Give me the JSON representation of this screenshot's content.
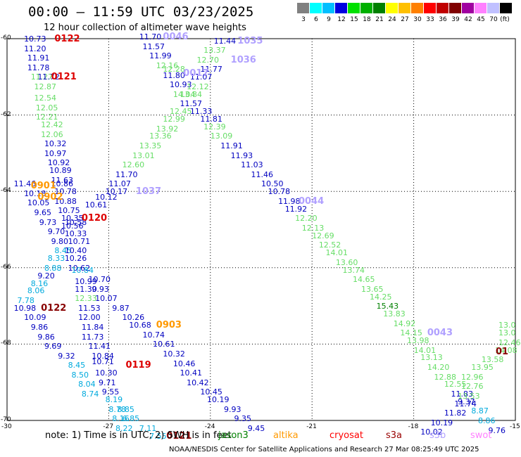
{
  "title": "00:00 – 11:59 UTC 03/23/2025",
  "subtitle": "12 hour collection of altimeter wave heights",
  "note": "note: 1) Time is in UTC; 2) SWH is in feet",
  "footer": "NOAA/NESDIS Center for Satellite Applications and Research   27 Mar 08:25:49 UTC 2025",
  "color_scale": {
    "unit": "(ft)",
    "bins": [
      {
        "label": "3",
        "color": "#808080"
      },
      {
        "label": "6",
        "color": "#00ffff"
      },
      {
        "label": "9",
        "color": "#00bfff"
      },
      {
        "label": "12",
        "color": "#0000e0"
      },
      {
        "label": "15",
        "color": "#00e000"
      },
      {
        "label": "18",
        "color": "#00b000"
      },
      {
        "label": "21",
        "color": "#008000"
      },
      {
        "label": "24",
        "color": "#ffff00"
      },
      {
        "label": "27",
        "color": "#ffc000"
      },
      {
        "label": "30",
        "color": "#ff8000"
      },
      {
        "label": "33",
        "color": "#ff0000"
      },
      {
        "label": "36",
        "color": "#c00000"
      },
      {
        "label": "39",
        "color": "#800000"
      },
      {
        "label": "42",
        "color": "#a000a0"
      },
      {
        "label": "45",
        "color": "#ff80ff"
      },
      {
        "label": "70",
        "color": "#c0c0ff"
      },
      {
        "label": "",
        "color": "#000000"
      }
    ]
  },
  "satellites": [
    {
      "name": "jason3",
      "color": "#008000"
    },
    {
      "name": "altika",
      "color": "#ff9900"
    },
    {
      "name": "cryosat",
      "color": "#ff0000"
    },
    {
      "name": "s3a",
      "color": "#990000"
    },
    {
      "name": "s3b",
      "color": "#b0a0ff"
    },
    {
      "name": "swot",
      "color": "#ff80ff"
    }
  ],
  "axes": {
    "lon_ticks": [
      "-30",
      "-27",
      "-24",
      "-21",
      "-18",
      "-15"
    ],
    "lat_ticks": [
      "-60",
      "-62",
      "-64",
      "-66",
      "-68",
      "-70"
    ]
  },
  "map_data": {
    "colors": {
      "B": "#0000c0",
      "L": "#66dd66",
      "C": "#00aadd",
      "G": "#008000",
      "P": "#b0a0ff",
      "R": "#dd0000",
      "D": "#880000",
      "O": "#ff9900"
    },
    "labels": [
      [
        "10.73",
        "B",
        -29.5,
        -60.0
      ],
      [
        "11.20",
        "B",
        -29.5,
        -60.25
      ],
      [
        "11.91",
        "B",
        -29.4,
        -60.5
      ],
      [
        "11.78",
        "B",
        -29.4,
        -60.75
      ],
      [
        "11.27",
        "L",
        -29.3,
        -61.0
      ],
      [
        "11.72",
        "B",
        -29.1,
        -61.0
      ],
      [
        "12.87",
        "L",
        -29.2,
        -61.25
      ],
      [
        "12.54",
        "L",
        -29.2,
        -61.55
      ],
      [
        "12.05",
        "L",
        -29.15,
        -61.8
      ],
      [
        "12.21",
        "L",
        -29.15,
        -62.05
      ],
      [
        "12.42",
        "L",
        -29.0,
        -62.25
      ],
      [
        "12.06",
        "L",
        -29.0,
        -62.5
      ],
      [
        "10.32",
        "B",
        -28.9,
        -62.75
      ],
      [
        "10.97",
        "B",
        -28.9,
        -63.0
      ],
      [
        "10.92",
        "B",
        -28.8,
        -63.25
      ],
      [
        "10.89",
        "B",
        -28.75,
        -63.45
      ],
      [
        "11.63",
        "B",
        -28.7,
        -63.7
      ],
      [
        "11.46",
        "B",
        -29.8,
        -63.8
      ],
      [
        "10.86",
        "B",
        -28.7,
        -63.8
      ],
      [
        "10.78",
        "B",
        -28.6,
        -64.0
      ],
      [
        "10.18",
        "B",
        -29.5,
        -64.05
      ],
      [
        "10.05",
        "B",
        -29.4,
        -64.3
      ],
      [
        "10.88",
        "B",
        -28.6,
        -64.25
      ],
      [
        "10.75",
        "B",
        -28.5,
        -64.5
      ],
      [
        "9.65",
        "B",
        -29.2,
        -64.55
      ],
      [
        "10.35",
        "B",
        -28.4,
        -64.7
      ],
      [
        "10.58",
        "B",
        -28.3,
        -64.8
      ],
      [
        "9.73",
        "B",
        -29.05,
        -64.8
      ],
      [
        "10.56",
        "B",
        -28.4,
        -64.9
      ],
      [
        "10.33",
        "B",
        -28.3,
        -65.1
      ],
      [
        "9.70",
        "B",
        -28.8,
        -65.05
      ],
      [
        "9.80",
        "B",
        -28.7,
        -65.3
      ],
      [
        "10.71",
        "B",
        -28.2,
        -65.3
      ],
      [
        "8.45",
        "C",
        -28.6,
        -65.55
      ],
      [
        "10.40",
        "B",
        -28.3,
        -65.55
      ],
      [
        "8.33",
        "C",
        -28.8,
        -65.75
      ],
      [
        "10.26",
        "B",
        -28.3,
        -65.75
      ],
      [
        "8.88",
        "C",
        -28.9,
        -66.0
      ],
      [
        "10.62",
        "B",
        -28.2,
        -66.0
      ],
      [
        "10.84",
        "C",
        -28.1,
        -66.05
      ],
      [
        "9.20",
        "B",
        -29.1,
        -66.2
      ],
      [
        "10.70",
        "B",
        -27.6,
        -66.3
      ],
      [
        "10.99",
        "B",
        -28.0,
        -66.35
      ],
      [
        "8.16",
        "C",
        -29.3,
        -66.4
      ],
      [
        "8.06",
        "C",
        -29.4,
        -66.6
      ],
      [
        "11.30",
        "B",
        -28.0,
        -66.55
      ],
      [
        "9.93",
        "B",
        -27.5,
        -66.55
      ],
      [
        "12.33",
        "L",
        -28.0,
        -66.8
      ],
      [
        "10.07",
        "B",
        -27.4,
        -66.8
      ],
      [
        "7.78",
        "C",
        -29.7,
        -66.85
      ],
      [
        "9.87",
        "B",
        -26.9,
        -67.05
      ],
      [
        "10.98",
        "B",
        -29.8,
        -67.05
      ],
      [
        "11.53",
        "B",
        -27.9,
        -67.05
      ],
      [
        "10.09",
        "B",
        -29.5,
        -67.3
      ],
      [
        "12.00",
        "B",
        -27.9,
        -67.3
      ],
      [
        "10.26",
        "B",
        -26.6,
        -67.3
      ],
      [
        "10.68",
        "B",
        -26.4,
        -67.5
      ],
      [
        "9.86",
        "B",
        -29.3,
        -67.55
      ],
      [
        "11.84",
        "B",
        -27.8,
        -67.55
      ],
      [
        "10.74",
        "B",
        -26.0,
        -67.75
      ],
      [
        "9.86",
        "B",
        -29.1,
        -67.8
      ],
      [
        "11.73",
        "B",
        -27.8,
        -67.8
      ],
      [
        "10.61",
        "B",
        -25.7,
        -68.0
      ],
      [
        "9.69",
        "B",
        -28.9,
        -68.05
      ],
      [
        "11.41",
        "B",
        -27.6,
        -68.05
      ],
      [
        "10.32",
        "B",
        -25.4,
        -68.25
      ],
      [
        "9.32",
        "B",
        -28.5,
        -68.3
      ],
      [
        "10.84",
        "B",
        -27.5,
        -68.3
      ],
      [
        "10.71",
        "B",
        -27.5,
        -68.45
      ],
      [
        "10.46",
        "B",
        -25.1,
        -68.5
      ],
      [
        "8.45",
        "C",
        -28.2,
        -68.55
      ],
      [
        "10.30",
        "B",
        -27.4,
        -68.75
      ],
      [
        "10.41",
        "B",
        -24.9,
        -68.75
      ],
      [
        "8.50",
        "C",
        -28.1,
        -68.8
      ],
      [
        "9.71",
        "B",
        -27.3,
        -69.0
      ],
      [
        "8.04",
        "C",
        -27.9,
        -69.05
      ],
      [
        "10.42",
        "B",
        -24.7,
        -69.0
      ],
      [
        "9.55",
        "B",
        -27.2,
        -69.25
      ],
      [
        "8.74",
        "C",
        -27.8,
        -69.3
      ],
      [
        "10.45",
        "B",
        -24.3,
        -69.25
      ],
      [
        "8.19",
        "C",
        -27.1,
        -69.45
      ],
      [
        "10.19",
        "B",
        -24.1,
        -69.45
      ],
      [
        "8.78",
        "C",
        -27.0,
        -69.7
      ],
      [
        "8.85",
        "C",
        -26.75,
        -69.7
      ],
      [
        "9.93",
        "B",
        -23.6,
        -69.7
      ],
      [
        "8.16",
        "C",
        -26.9,
        -69.95
      ],
      [
        "6.85",
        "C",
        -26.6,
        -69.95
      ],
      [
        "8.22",
        "C",
        -26.8,
        -70.2
      ],
      [
        "7.11",
        "C",
        -26.1,
        -70.2
      ],
      [
        "9.35",
        "B",
        -23.3,
        -69.95
      ],
      [
        "7.55",
        "C",
        -25.8,
        -70.4
      ],
      [
        "9.45",
        "B",
        -22.9,
        -70.2
      ],
      [
        "11.70",
        "B",
        -26.1,
        -59.95
      ],
      [
        "11.57",
        "B",
        -26.0,
        -60.2
      ],
      [
        "11.99",
        "B",
        -25.8,
        -60.45
      ],
      [
        "12.16",
        "L",
        -25.6,
        -60.7
      ],
      [
        "12.28",
        "L",
        -25.4,
        -60.8
      ],
      [
        "11.80",
        "B",
        -25.4,
        -60.95
      ],
      [
        "10.93",
        "B",
        -25.2,
        -61.2
      ],
      [
        "14.04",
        "L",
        -25.1,
        -61.45
      ],
      [
        "13.84",
        "L",
        -24.9,
        -61.45
      ],
      [
        "11.57",
        "B",
        -24.9,
        -61.7
      ],
      [
        "12.45",
        "L",
        -25.2,
        -61.9
      ],
      [
        "11.33",
        "B",
        -24.6,
        -61.9
      ],
      [
        "12.99",
        "L",
        -25.4,
        -62.1
      ],
      [
        "11.81",
        "B",
        -24.3,
        -62.1
      ],
      [
        "13.92",
        "L",
        -25.6,
        -62.35
      ],
      [
        "13.36",
        "L",
        -25.8,
        -62.55
      ],
      [
        "13.35",
        "L",
        -26.1,
        -62.8
      ],
      [
        "13.01",
        "L",
        -26.3,
        -63.05
      ],
      [
        "12.60",
        "L",
        -26.6,
        -63.3
      ],
      [
        "11.70",
        "B",
        -26.8,
        -63.55
      ],
      [
        "11.07",
        "B",
        -27.0,
        -63.8
      ],
      [
        "10.17",
        "B",
        -27.1,
        -64.0
      ],
      [
        "10.12",
        "B",
        -27.4,
        -64.15
      ],
      [
        "10.61",
        "B",
        -27.7,
        -64.35
      ],
      [
        "11.44",
        "B",
        -23.9,
        -60.05
      ],
      [
        "13.37",
        "L",
        -24.2,
        -60.3
      ],
      [
        "12.70",
        "L",
        -24.4,
        -60.55
      ],
      [
        "11.77",
        "B",
        -24.3,
        -60.8
      ],
      [
        "11.07",
        "B",
        -24.6,
        -61.0
      ],
      [
        "12.12",
        "L",
        -24.7,
        -61.25
      ],
      [
        "12.39",
        "L",
        -24.2,
        -62.3
      ],
      [
        "13.09",
        "L",
        -24.0,
        -62.55
      ],
      [
        "11.91",
        "B",
        -23.7,
        -62.8
      ],
      [
        "11.93",
        "B",
        -23.4,
        -63.05
      ],
      [
        "11.03",
        "B",
        -23.1,
        -63.3
      ],
      [
        "11.46",
        "B",
        -22.8,
        -63.55
      ],
      [
        "10.50",
        "B",
        -22.5,
        -63.8
      ],
      [
        "10.78",
        "B",
        -22.3,
        -64.0
      ],
      [
        "11.98",
        "B",
        -22.0,
        -64.25
      ],
      [
        "11.92",
        "B",
        -21.8,
        -64.45
      ],
      [
        "12.20",
        "L",
        -21.5,
        -64.7
      ],
      [
        "12.13",
        "L",
        -21.3,
        -64.95
      ],
      [
        "12.69",
        "L",
        -21.0,
        -65.15
      ],
      [
        "12.52",
        "L",
        -20.8,
        -65.4
      ],
      [
        "14.01",
        "L",
        -20.6,
        -65.6
      ],
      [
        "13.60",
        "L",
        -20.3,
        -65.85
      ],
      [
        "13.74",
        "L",
        -20.1,
        -66.05
      ],
      [
        "14.65",
        "L",
        -19.8,
        -66.3
      ],
      [
        "13.65",
        "L",
        -19.55,
        -66.55
      ],
      [
        "14.25",
        "L",
        -19.3,
        -66.75
      ],
      [
        "15.43",
        "G",
        -19.1,
        -67.0
      ],
      [
        "13.83",
        "L",
        -18.9,
        -67.2
      ],
      [
        "14.92",
        "L",
        -18.6,
        -67.45
      ],
      [
        "14.15",
        "L",
        -18.4,
        -67.7
      ],
      [
        "13.98",
        "L",
        -18.2,
        -67.9
      ],
      [
        "14.01",
        "L",
        -18.0,
        -68.15
      ],
      [
        "13.13",
        "L",
        -17.8,
        -68.35
      ],
      [
        "14.20",
        "L",
        -17.6,
        -68.6
      ],
      [
        "12.88",
        "L",
        -17.4,
        -68.85
      ],
      [
        "12.55",
        "L",
        -17.1,
        -69.05
      ],
      [
        "12.76",
        "L",
        -16.6,
        -69.1
      ],
      [
        "11.83",
        "B",
        -16.9,
        -69.3
      ],
      [
        "13.53",
        "L",
        -16.7,
        -69.35
      ],
      [
        "9.37",
        "B",
        -16.7,
        -69.5
      ],
      [
        "11.74",
        "B",
        -16.8,
        -69.55
      ],
      [
        "8.87",
        "C",
        -16.3,
        -69.75
      ],
      [
        "11.82",
        "B",
        -17.1,
        -69.8
      ],
      [
        "8.86",
        "C",
        -16.1,
        -70.0
      ],
      [
        "10.19",
        "B",
        -17.5,
        -70.05
      ],
      [
        "10.02",
        "B",
        -17.8,
        -70.3
      ],
      [
        "9.76",
        "B",
        -15.8,
        -70.25
      ],
      [
        "13.0",
        "L",
        -15.1,
        -67.5
      ],
      [
        "13.0",
        "L",
        -15.1,
        -67.7
      ],
      [
        "12.46",
        "L",
        -15.3,
        -67.95
      ],
      [
        "14.08",
        "L",
        -15.6,
        -68.15
      ],
      [
        "13.58",
        "L",
        -16.0,
        -68.4
      ],
      [
        "13.95",
        "L",
        -16.3,
        -68.6
      ],
      [
        "12.96",
        "L",
        -16.6,
        -68.85
      ]
    ],
    "pass_ids": [
      [
        "0122",
        "R",
        -28.6,
        -60.0
      ],
      [
        "0121",
        "R",
        -28.7,
        -61.0
      ],
      [
        "0046",
        "P",
        -25.4,
        -59.95
      ],
      [
        "0017",
        "P",
        -24.8,
        -60.9
      ],
      [
        "1035",
        "P",
        -23.2,
        -60.05
      ],
      [
        "1036",
        "P",
        -23.4,
        -60.55
      ],
      [
        "0901",
        "O",
        -29.3,
        -63.85
      ],
      [
        "0902",
        "O",
        -29.1,
        -64.15
      ],
      [
        "0120",
        "R",
        -27.8,
        -64.7
      ],
      [
        "1037",
        "P",
        -26.2,
        -64.0
      ],
      [
        "0044",
        "P",
        -21.4,
        -64.25
      ],
      [
        "0122",
        "D",
        -29.0,
        -67.05
      ],
      [
        "0903",
        "O",
        -25.6,
        -67.5
      ],
      [
        "0043",
        "P",
        -17.6,
        -67.7
      ],
      [
        "0119",
        "R",
        -26.5,
        -68.55
      ],
      [
        "0121",
        "D",
        -25.3,
        -70.4
      ],
      [
        "01",
        "D",
        -15.1,
        -68.2
      ]
    ]
  }
}
